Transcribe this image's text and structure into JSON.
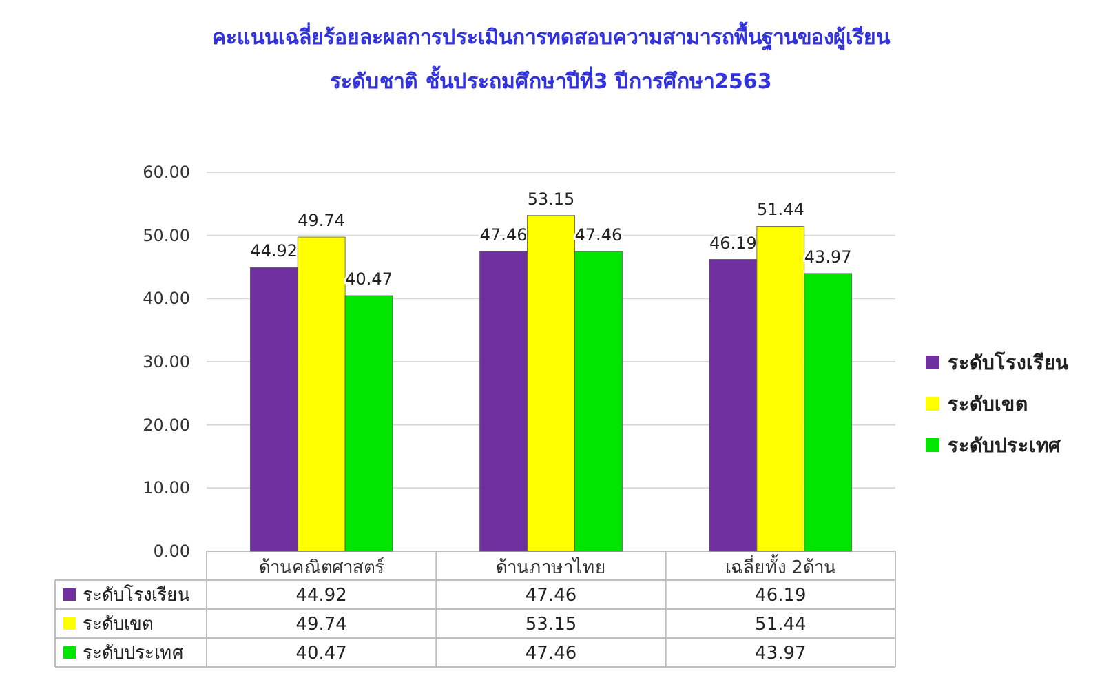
{
  "chart_data": {
    "type": "bar",
    "title": "คะแนนเฉลี่ยร้อยละผลการประเมินการทดสอบความสามารถพื้นฐานของผู้เรียน",
    "subtitle": "ระดับชาติ ชั้นประถมศึกษาปีที่3 ปีการศึกษา2563",
    "categories": [
      "ด้านคณิตศาสตร์",
      "ด้านภาษาไทย",
      "เฉลี่ยทั้ง 2ด้าน"
    ],
    "series": [
      {
        "name": "ระดับโรงเรียน",
        "color": "#7030a0",
        "values": [
          44.92,
          47.46,
          46.19
        ]
      },
      {
        "name": "ระดับเขต",
        "color": "#ffff00",
        "values": [
          49.74,
          53.15,
          51.44
        ]
      },
      {
        "name": "ระดับประเทศ",
        "color": "#00e600",
        "values": [
          40.47,
          47.46,
          43.97
        ]
      }
    ],
    "ylim": [
      0,
      60
    ],
    "yticks": [
      {
        "value": 0,
        "label": "0.00"
      },
      {
        "value": 10,
        "label": "10.00"
      },
      {
        "value": 20,
        "label": "20.00"
      },
      {
        "value": 30,
        "label": "30.00"
      },
      {
        "value": 40,
        "label": "40.00"
      },
      {
        "value": 50,
        "label": "50.00"
      },
      {
        "value": 60,
        "label": "60.00"
      }
    ],
    "annotations": [
      "44.92",
      "47.46",
      "46.19",
      "49.74",
      "53.15",
      "51.44",
      "40.47",
      "47.46",
      "43.97"
    ],
    "grid": "y",
    "legend": "right",
    "data_labels": true
  }
}
